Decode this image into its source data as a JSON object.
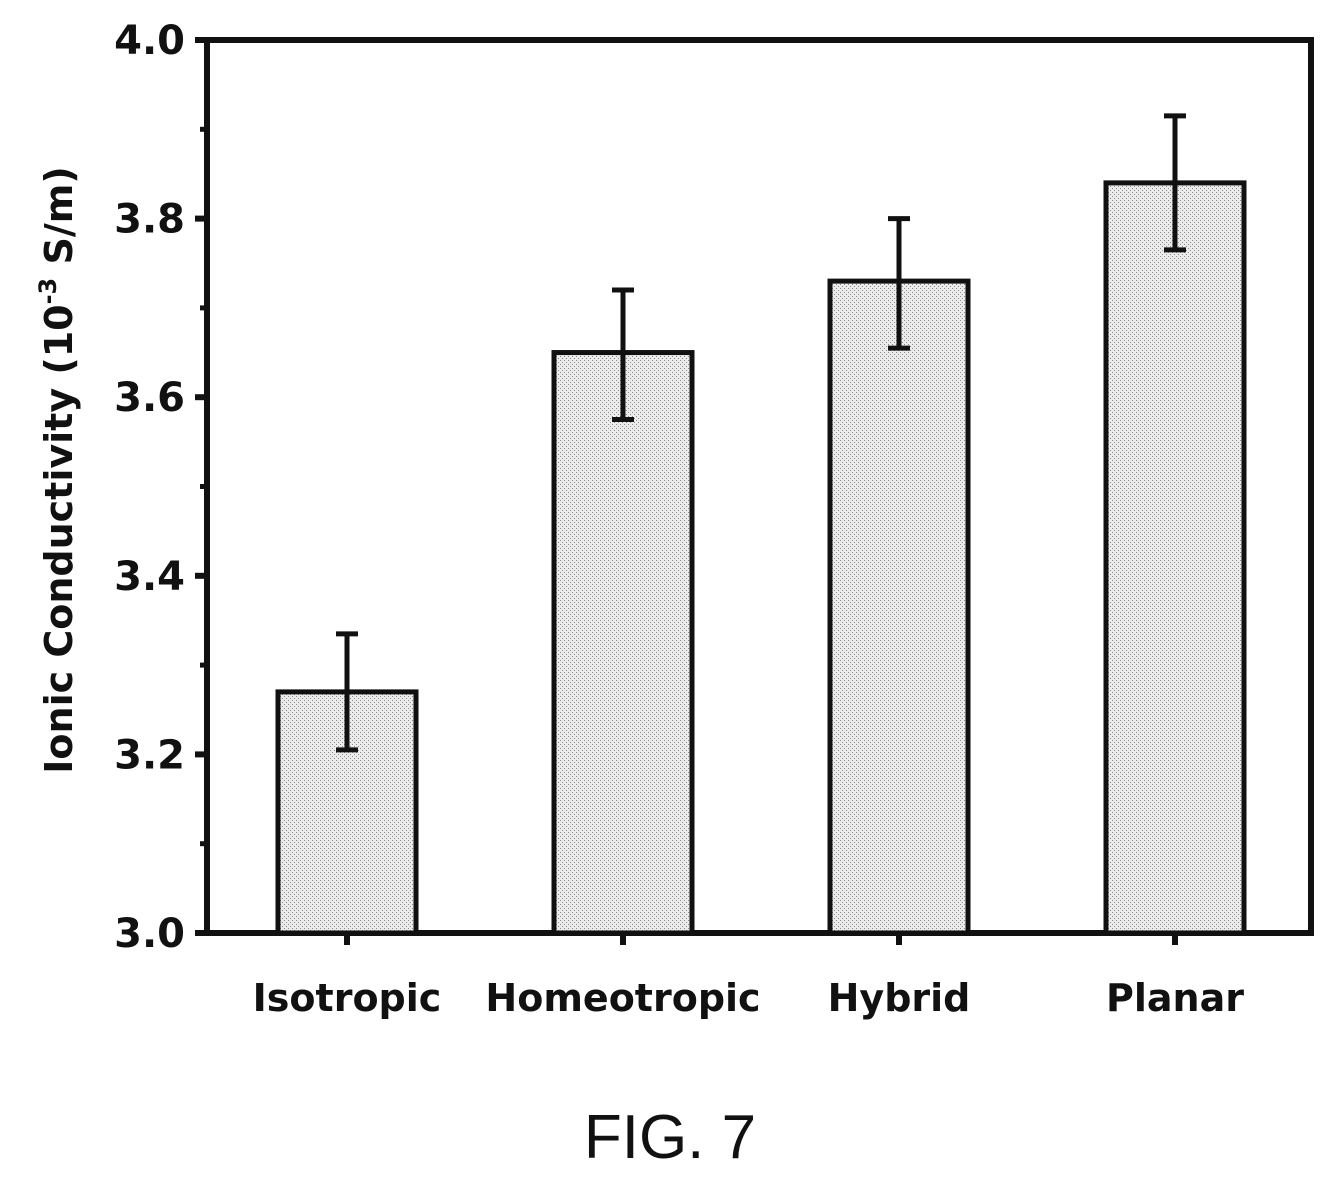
{
  "chart_data": {
    "type": "bar",
    "categories": [
      "Isotropic",
      "Homeotropic",
      "Hybrid",
      "Planar"
    ],
    "values": [
      3.27,
      3.65,
      3.73,
      3.84
    ],
    "error_low": [
      3.205,
      3.575,
      3.655,
      3.765
    ],
    "error_high": [
      3.335,
      3.72,
      3.8,
      3.915
    ],
    "ylabel_main": "Ionic Conductivity (10",
    "ylabel_exp": "-3",
    "ylabel_unit": " S/m)",
    "xlabel": "",
    "ylim": [
      3.0,
      4.0
    ],
    "yticks": [
      "3.0",
      "3.2",
      "3.4",
      "3.6",
      "3.8",
      "4.0"
    ],
    "bar_fill": "#d9d9d9",
    "bar_stroke": "#111111",
    "grid": false
  },
  "caption": "FIG. 7"
}
